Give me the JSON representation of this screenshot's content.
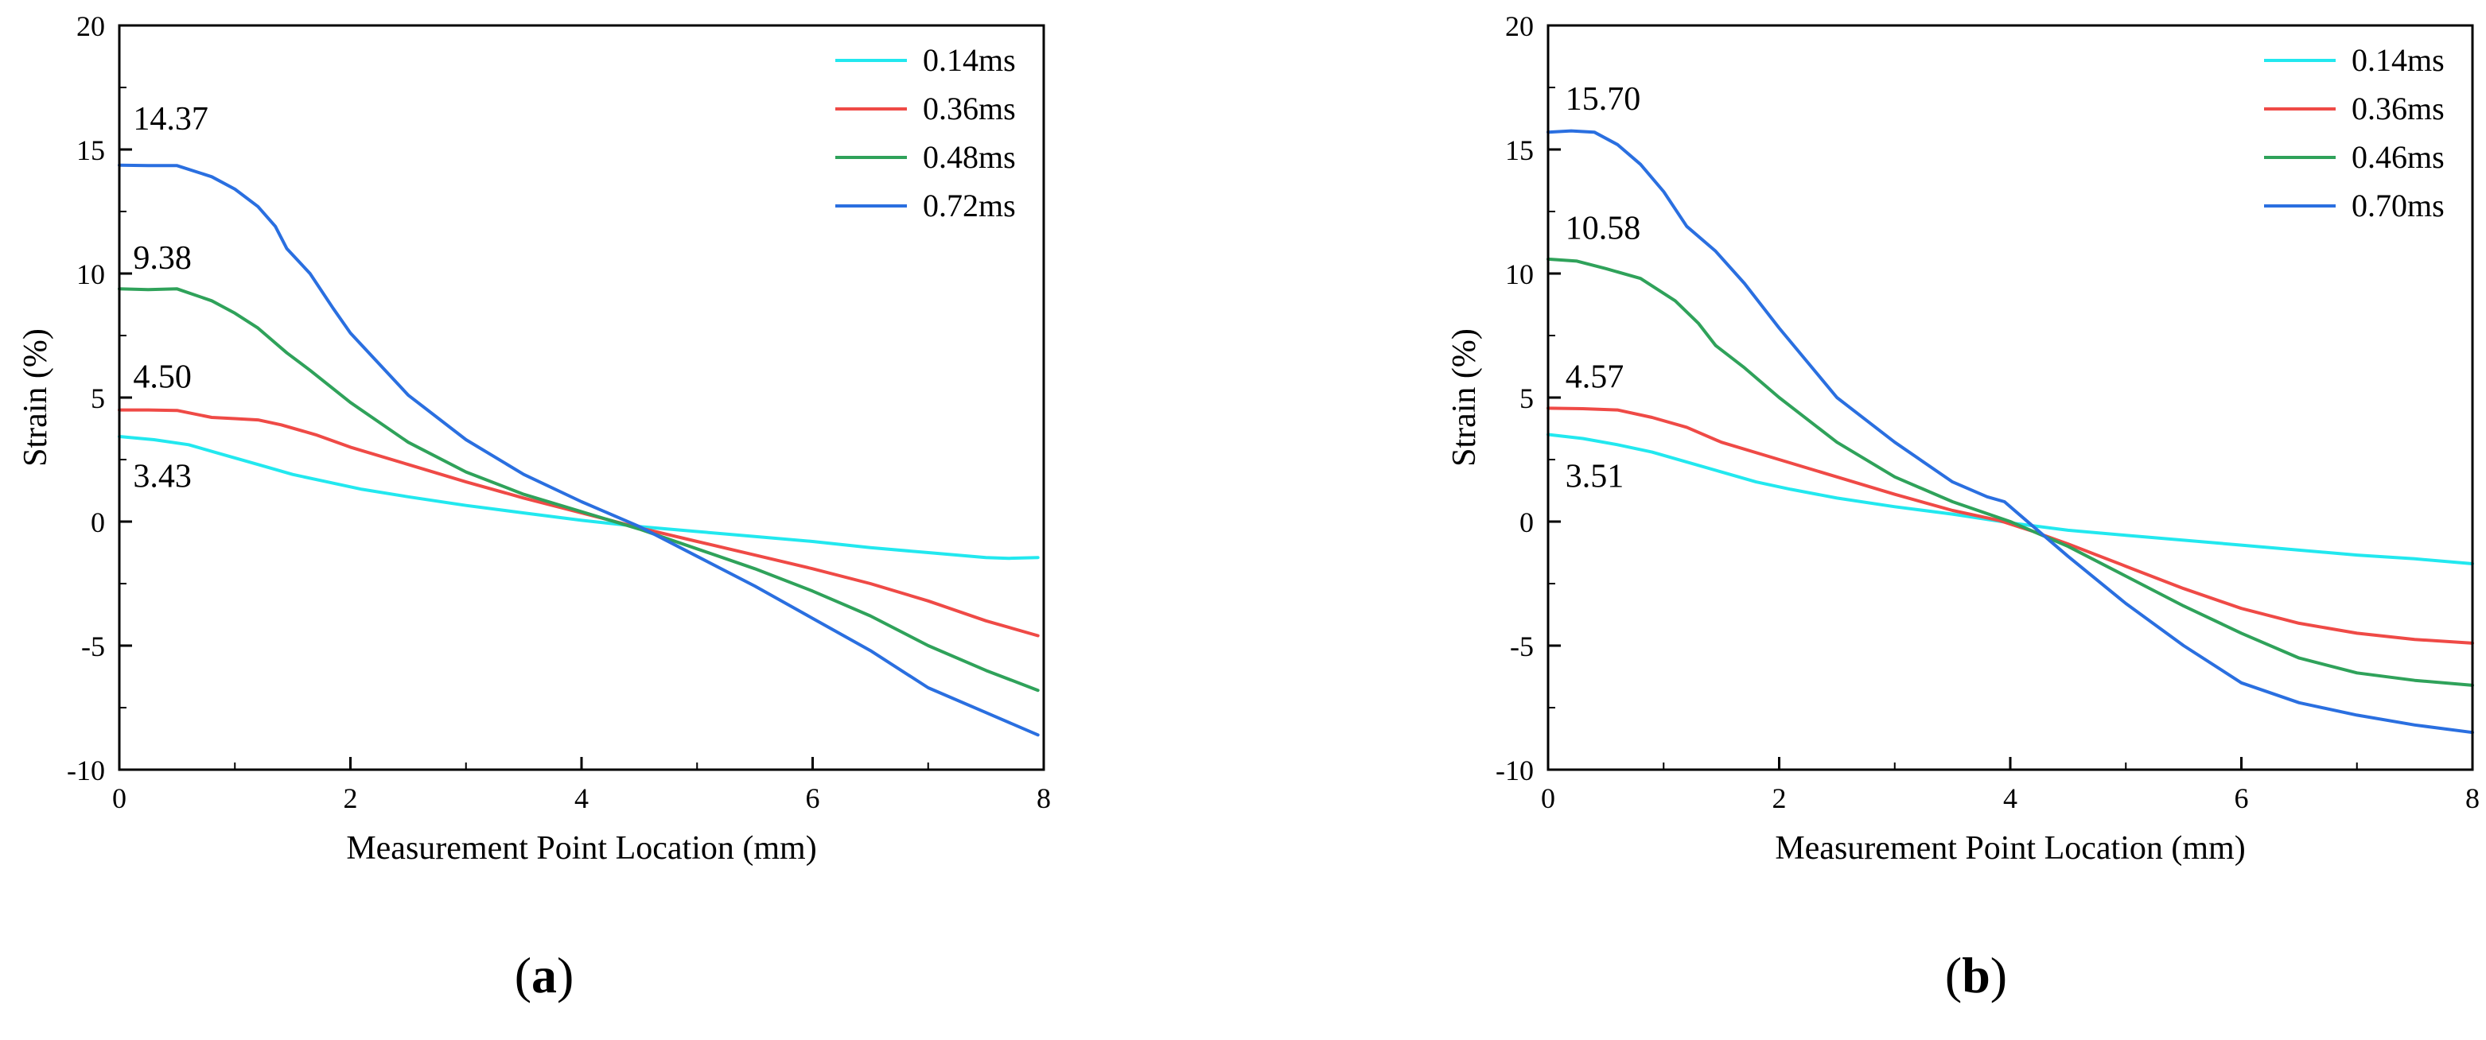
{
  "chart_data": [
    {
      "type": "line",
      "panel_label": "a",
      "title": "",
      "xlabel": "Measurement Point Location (mm)",
      "ylabel": "Strain (%)",
      "xlim": [
        0,
        8
      ],
      "ylim": [
        -10,
        20
      ],
      "xticks": [
        0,
        2,
        4,
        6,
        8
      ],
      "yticks": [
        -10,
        -5,
        0,
        5,
        10,
        15,
        20
      ],
      "grid": false,
      "legend_position": "top-right",
      "annotations": [
        {
          "text": "14.37",
          "x": 0.12,
          "y": 15.8
        },
        {
          "text": "9.38",
          "x": 0.12,
          "y": 10.2
        },
        {
          "text": "4.50",
          "x": 0.12,
          "y": 5.4
        },
        {
          "text": "3.43",
          "x": 0.12,
          "y": 1.4
        }
      ],
      "series": [
        {
          "name": "0.14ms",
          "color": "#22e8ef",
          "x": [
            0,
            0.3,
            0.6,
            0.9,
            1.2,
            1.5,
            1.8,
            2.1,
            2.5,
            3,
            3.5,
            4,
            4.5,
            5,
            5.5,
            6,
            6.5,
            7,
            7.5,
            7.7,
            7.95
          ],
          "y": [
            3.43,
            3.3,
            3.1,
            2.7,
            2.3,
            1.9,
            1.6,
            1.3,
            1.0,
            0.65,
            0.35,
            0.05,
            -0.2,
            -0.4,
            -0.6,
            -0.8,
            -1.05,
            -1.25,
            -1.45,
            -1.48,
            -1.45
          ]
        },
        {
          "name": "0.36ms",
          "color": "#ef4a46",
          "x": [
            0,
            0.25,
            0.5,
            0.8,
            1.0,
            1.2,
            1.4,
            1.7,
            2.0,
            2.5,
            3,
            3.5,
            4,
            4.5,
            5,
            5.5,
            6,
            6.5,
            7,
            7.5,
            7.95
          ],
          "y": [
            4.5,
            4.5,
            4.48,
            4.2,
            4.15,
            4.1,
            3.9,
            3.5,
            3.0,
            2.3,
            1.6,
            0.95,
            0.35,
            -0.25,
            -0.8,
            -1.35,
            -1.9,
            -2.5,
            -3.2,
            -4.0,
            -4.6
          ]
        },
        {
          "name": "0.48ms",
          "color": "#2fa25a",
          "x": [
            0,
            0.25,
            0.5,
            0.8,
            1.0,
            1.2,
            1.35,
            1.45,
            1.65,
            2.0,
            2.5,
            3,
            3.5,
            4,
            4.5,
            5,
            5.5,
            6,
            6.5,
            7,
            7.5,
            7.95
          ],
          "y": [
            9.38,
            9.35,
            9.38,
            8.9,
            8.4,
            7.8,
            7.2,
            6.8,
            6.1,
            4.8,
            3.2,
            2.0,
            1.1,
            0.4,
            -0.3,
            -1.1,
            -1.9,
            -2.8,
            -3.8,
            -5.0,
            -6.0,
            -6.8
          ]
        },
        {
          "name": "0.72ms",
          "color": "#2a6fe0",
          "x": [
            0,
            0.25,
            0.5,
            0.8,
            1.0,
            1.2,
            1.35,
            1.45,
            1.65,
            1.85,
            2.0,
            2.5,
            3,
            3.5,
            4,
            4.5,
            5,
            5.5,
            6,
            6.5,
            7,
            7.5,
            7.95
          ],
          "y": [
            14.37,
            14.35,
            14.35,
            13.9,
            13.4,
            12.7,
            11.9,
            11.0,
            10.0,
            8.6,
            7.6,
            5.1,
            3.3,
            1.9,
            0.8,
            -0.2,
            -1.4,
            -2.6,
            -3.9,
            -5.2,
            -6.7,
            -7.7,
            -8.6
          ]
        }
      ]
    },
    {
      "type": "line",
      "panel_label": "b",
      "title": "",
      "xlabel": "Measurement Point Location (mm)",
      "ylabel": "Strain (%)",
      "xlim": [
        0,
        8
      ],
      "ylim": [
        -10,
        20
      ],
      "xticks": [
        0,
        2,
        4,
        6,
        8
      ],
      "yticks": [
        -10,
        -5,
        0,
        5,
        10,
        15,
        20
      ],
      "grid": false,
      "legend_position": "top-right",
      "annotations": [
        {
          "text": "15.70",
          "x": 0.15,
          "y": 16.6
        },
        {
          "text": "10.58",
          "x": 0.15,
          "y": 11.4
        },
        {
          "text": "4.57",
          "x": 0.15,
          "y": 5.4
        },
        {
          "text": "3.51",
          "x": 0.15,
          "y": 1.4
        }
      ],
      "series": [
        {
          "name": "0.14ms",
          "color": "#22e8ef",
          "x": [
            0,
            0.3,
            0.6,
            0.9,
            1.2,
            1.5,
            1.8,
            2.1,
            2.5,
            3,
            3.5,
            4,
            4.5,
            5,
            5.5,
            6,
            6.5,
            7,
            7.5,
            8
          ],
          "y": [
            3.51,
            3.35,
            3.1,
            2.8,
            2.4,
            2.0,
            1.6,
            1.3,
            0.95,
            0.6,
            0.3,
            -0.05,
            -0.35,
            -0.55,
            -0.75,
            -0.95,
            -1.15,
            -1.35,
            -1.5,
            -1.7
          ]
        },
        {
          "name": "0.36ms",
          "color": "#ef4a46",
          "x": [
            0,
            0.3,
            0.6,
            0.9,
            1.2,
            1.5,
            2.0,
            2.5,
            3,
            3.5,
            3.9,
            4.2,
            4.5,
            5,
            5.5,
            6,
            6.5,
            7,
            7.5,
            8
          ],
          "y": [
            4.57,
            4.55,
            4.5,
            4.2,
            3.8,
            3.2,
            2.5,
            1.8,
            1.1,
            0.45,
            0.05,
            -0.4,
            -0.9,
            -1.8,
            -2.7,
            -3.5,
            -4.1,
            -4.5,
            -4.75,
            -4.9
          ]
        },
        {
          "name": "0.46ms",
          "color": "#2fa25a",
          "x": [
            0,
            0.25,
            0.5,
            0.8,
            1.1,
            1.3,
            1.45,
            1.7,
            2.0,
            2.5,
            3,
            3.5,
            4,
            4.5,
            5,
            5.5,
            6,
            6.5,
            7,
            7.5,
            8
          ],
          "y": [
            10.58,
            10.5,
            10.2,
            9.8,
            8.9,
            8.0,
            7.1,
            6.2,
            5.0,
            3.2,
            1.8,
            0.8,
            0.0,
            -1.0,
            -2.2,
            -3.4,
            -4.5,
            -5.5,
            -6.1,
            -6.4,
            -6.6
          ]
        },
        {
          "name": "0.70ms",
          "color": "#2a6fe0",
          "x": [
            0,
            0.2,
            0.4,
            0.6,
            0.8,
            1.0,
            1.2,
            1.45,
            1.7,
            2.0,
            2.5,
            3,
            3.5,
            3.8,
            3.95,
            4.1,
            4.5,
            5,
            5.5,
            6,
            6.5,
            7,
            7.5,
            8
          ],
          "y": [
            15.7,
            15.75,
            15.7,
            15.2,
            14.4,
            13.3,
            11.9,
            10.9,
            9.6,
            7.8,
            5.0,
            3.2,
            1.6,
            1.0,
            0.8,
            0.2,
            -1.4,
            -3.3,
            -5.0,
            -6.5,
            -7.3,
            -7.8,
            -8.2,
            -8.5
          ]
        }
      ]
    }
  ],
  "captions": [
    "a",
    "b"
  ]
}
